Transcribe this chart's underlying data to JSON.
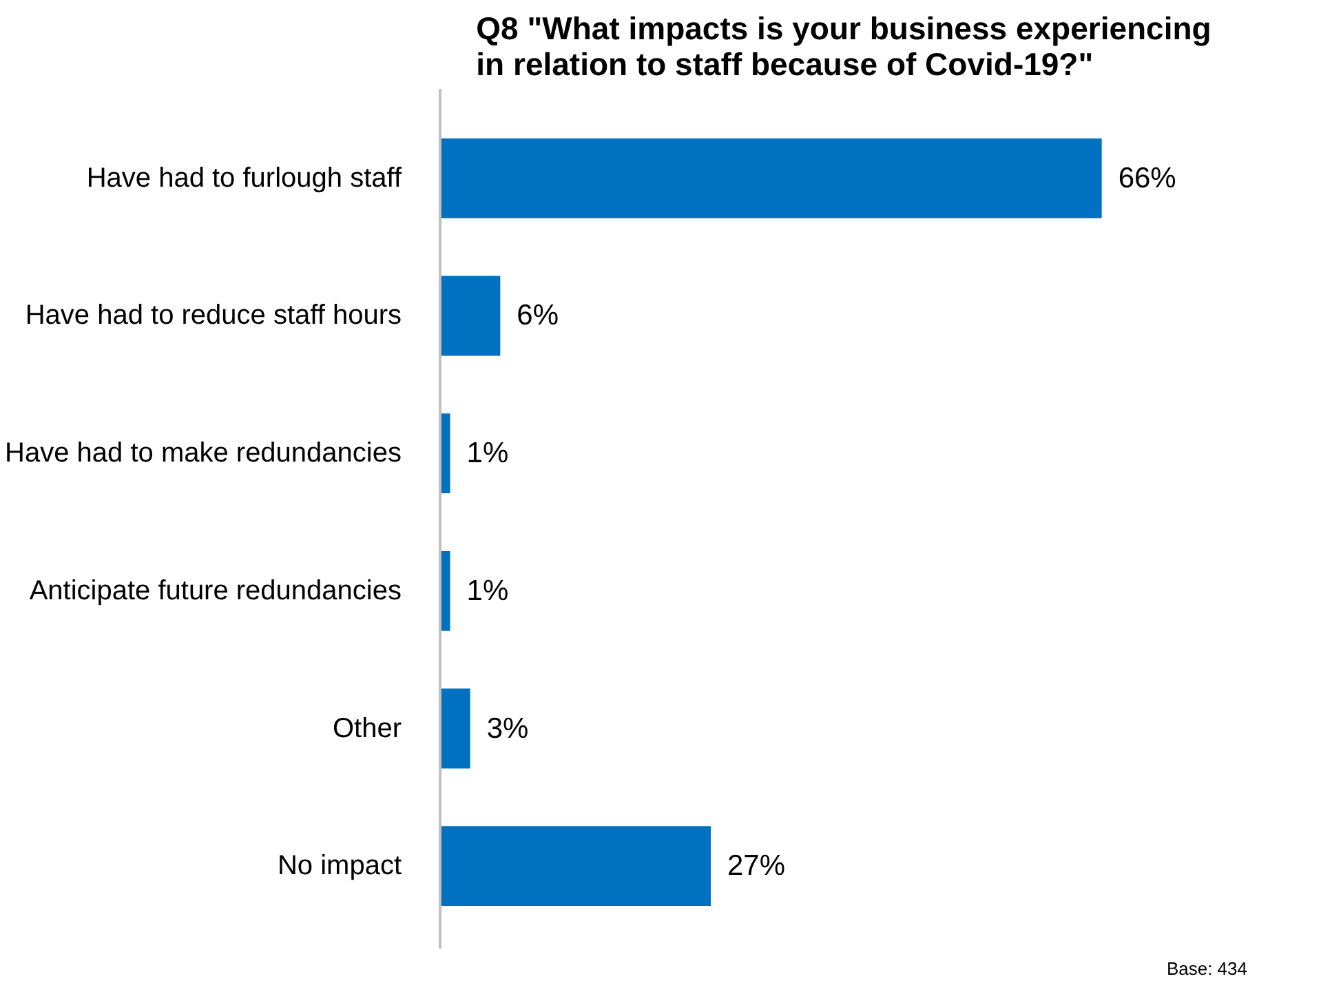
{
  "chart_data": {
    "type": "bar",
    "orientation": "horizontal",
    "title": "Q8 \"What impacts is your business experiencing\nin relation to staff because of Covid-19?\"",
    "categories": [
      "Have had to furlough staff",
      "Have had to reduce staff hours",
      "Have had to make redundancies",
      "Anticipate future redundancies",
      "Other",
      "No impact"
    ],
    "values": [
      66,
      6,
      1,
      1,
      3,
      27
    ],
    "value_labels": [
      "66%",
      "6%",
      "1%",
      "1%",
      "3%",
      "27%"
    ],
    "color": "#0070c0",
    "annotations": [
      "Base: 434"
    ]
  }
}
